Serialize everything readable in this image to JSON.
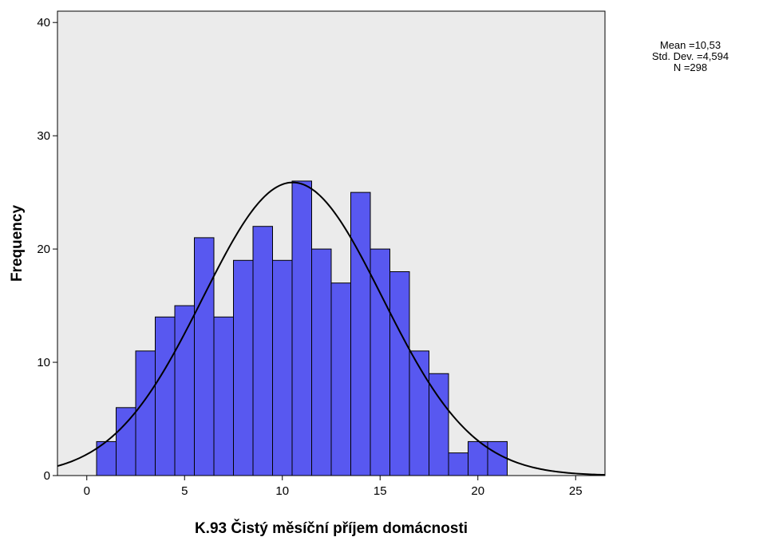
{
  "chart_data": {
    "type": "bar",
    "subtype": "histogram",
    "xlabel": "K.93 Čistý měsíční příjem domácnosti",
    "ylabel": "Frequency",
    "xlim": [
      -1.5,
      26.5
    ],
    "ylim": [
      0,
      41
    ],
    "x_ticks": [
      0,
      5,
      10,
      15,
      20,
      25
    ],
    "y_ticks": [
      0,
      10,
      20,
      30,
      40
    ],
    "bin_width": 1,
    "bins": [
      {
        "x": 1,
        "value": 3
      },
      {
        "x": 2,
        "value": 6
      },
      {
        "x": 3,
        "value": 11
      },
      {
        "x": 4,
        "value": 14
      },
      {
        "x": 5,
        "value": 15
      },
      {
        "x": 6,
        "value": 21
      },
      {
        "x": 7,
        "value": 14
      },
      {
        "x": 8,
        "value": 19
      },
      {
        "x": 9,
        "value": 22
      },
      {
        "x": 10,
        "value": 19
      },
      {
        "x": 11,
        "value": 26
      },
      {
        "x": 12,
        "value": 20
      },
      {
        "x": 13,
        "value": 17
      },
      {
        "x": 14,
        "value": 25
      },
      {
        "x": 15,
        "value": 20
      },
      {
        "x": 16,
        "value": 18
      },
      {
        "x": 17,
        "value": 11
      },
      {
        "x": 18,
        "value": 9
      },
      {
        "x": 19,
        "value": 2
      },
      {
        "x": 20,
        "value": 3
      },
      {
        "x": 21,
        "value": 3
      }
    ],
    "normal_curve": {
      "mean": 10.53,
      "sd": 4.594,
      "n": 298
    },
    "grid": false,
    "legend": "none",
    "colors": {
      "bar_fill": "#5858f0",
      "bar_stroke": "#000000",
      "plot_background": "#ebebeb",
      "curve": "#000000"
    }
  },
  "stats_box": {
    "mean_line": "Mean =10,53",
    "sd_line": "Std. Dev. =4,594",
    "n_line": "N =298"
  }
}
